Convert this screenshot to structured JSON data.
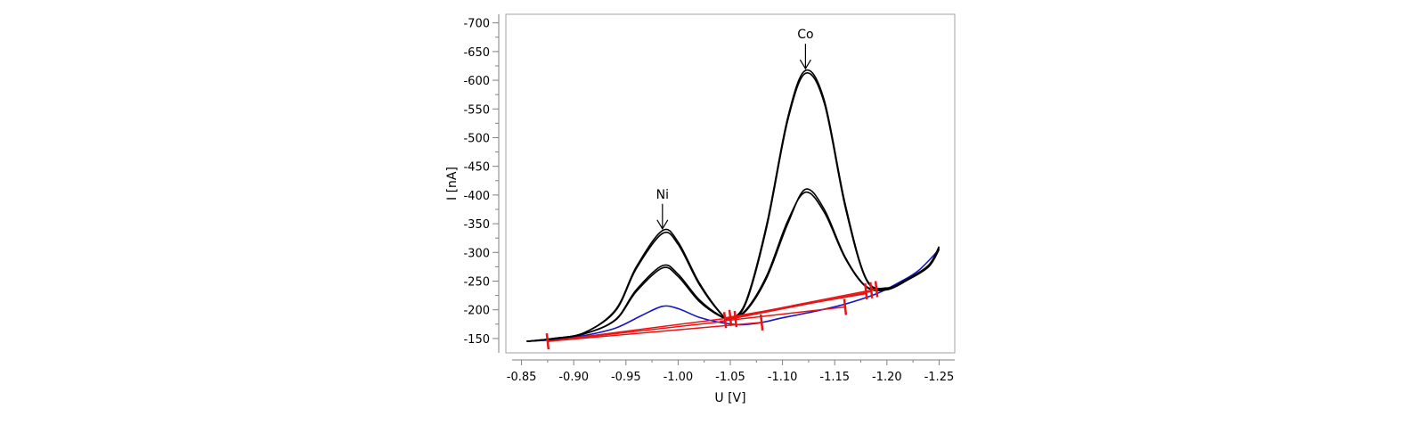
{
  "chart_data": {
    "type": "line",
    "title": "",
    "xlabel": "U [V]",
    "ylabel": "I [nA]",
    "xlim": [
      -0.835,
      -1.265
    ],
    "ylim": [
      -125,
      -715
    ],
    "x_ticks": [
      "-0.85",
      "-0.90",
      "-0.95",
      "-1.00",
      "-1.05",
      "-1.10",
      "-1.15",
      "-1.20",
      "-1.25"
    ],
    "y_ticks": [
      "-700",
      "-650",
      "-600",
      "-550",
      "-500",
      "-450",
      "-400",
      "-350",
      "-300",
      "-250",
      "-200",
      "-150"
    ],
    "grid": false,
    "annotations": [
      {
        "text": "Ni",
        "x": -0.985,
        "y": -338
      },
      {
        "text": "Co",
        "x": -1.122,
        "y": -617
      }
    ],
    "colors": {
      "sample": "#000000",
      "blank": "#1414c8",
      "baseline": "#e81414",
      "frame": "#a0a0a0"
    },
    "series": [
      {
        "color": "#1414c8",
        "values": [
          [
            -0.855,
            -145
          ],
          [
            -0.88,
            -148
          ],
          [
            -0.91,
            -155
          ],
          [
            -0.94,
            -168
          ],
          [
            -0.965,
            -190
          ],
          [
            -0.985,
            -206
          ],
          [
            -1.0,
            -202
          ],
          [
            -1.02,
            -187
          ],
          [
            -1.04,
            -178
          ],
          [
            -1.06,
            -174
          ],
          [
            -1.08,
            -178
          ],
          [
            -1.1,
            -186
          ],
          [
            -1.13,
            -197
          ],
          [
            -1.16,
            -210
          ],
          [
            -1.19,
            -228
          ],
          [
            -1.21,
            -246
          ],
          [
            -1.23,
            -268
          ],
          [
            -1.25,
            -305
          ]
        ]
      },
      {
        "color": "#000000",
        "values": [
          [
            -0.855,
            -145
          ],
          [
            -0.88,
            -149
          ],
          [
            -0.91,
            -158
          ],
          [
            -0.94,
            -183
          ],
          [
            -0.96,
            -235
          ],
          [
            -0.985,
            -277
          ],
          [
            -1.0,
            -262
          ],
          [
            -1.02,
            -218
          ],
          [
            -1.04,
            -190
          ],
          [
            -1.05,
            -186
          ],
          [
            -1.065,
            -200
          ],
          [
            -1.085,
            -260
          ],
          [
            -1.105,
            -355
          ],
          [
            -1.122,
            -405
          ],
          [
            -1.14,
            -370
          ],
          [
            -1.16,
            -290
          ],
          [
            -1.18,
            -240
          ],
          [
            -1.2,
            -235
          ],
          [
            -1.22,
            -252
          ],
          [
            -1.24,
            -275
          ],
          [
            -1.25,
            -305
          ]
        ]
      },
      {
        "color": "#000000",
        "values": [
          [
            -0.855,
            -145
          ],
          [
            -0.88,
            -149
          ],
          [
            -0.91,
            -158
          ],
          [
            -0.94,
            -182
          ],
          [
            -0.96,
            -232
          ],
          [
            -0.985,
            -273
          ],
          [
            -1.0,
            -258
          ],
          [
            -1.02,
            -215
          ],
          [
            -1.04,
            -189
          ],
          [
            -1.05,
            -185
          ],
          [
            -1.065,
            -198
          ],
          [
            -1.085,
            -256
          ],
          [
            -1.105,
            -350
          ],
          [
            -1.122,
            -410
          ],
          [
            -1.14,
            -375
          ],
          [
            -1.16,
            -292
          ],
          [
            -1.18,
            -241
          ],
          [
            -1.2,
            -236
          ],
          [
            -1.22,
            -253
          ],
          [
            -1.24,
            -276
          ],
          [
            -1.25,
            -306
          ]
        ]
      },
      {
        "color": "#000000",
        "values": [
          [
            -0.855,
            -145
          ],
          [
            -0.88,
            -150
          ],
          [
            -0.91,
            -160
          ],
          [
            -0.94,
            -200
          ],
          [
            -0.96,
            -275
          ],
          [
            -0.985,
            -338
          ],
          [
            -1.0,
            -318
          ],
          [
            -1.02,
            -248
          ],
          [
            -1.04,
            -196
          ],
          [
            -1.05,
            -185
          ],
          [
            -1.065,
            -215
          ],
          [
            -1.085,
            -350
          ],
          [
            -1.105,
            -535
          ],
          [
            -1.122,
            -617
          ],
          [
            -1.14,
            -565
          ],
          [
            -1.16,
            -385
          ],
          [
            -1.18,
            -255
          ],
          [
            -1.2,
            -238
          ],
          [
            -1.22,
            -254
          ],
          [
            -1.24,
            -278
          ],
          [
            -1.25,
            -310
          ]
        ]
      },
      {
        "color": "#000000",
        "values": [
          [
            -0.855,
            -145
          ],
          [
            -0.88,
            -150
          ],
          [
            -0.91,
            -160
          ],
          [
            -0.94,
            -198
          ],
          [
            -0.96,
            -272
          ],
          [
            -0.985,
            -333
          ],
          [
            -1.0,
            -314
          ],
          [
            -1.02,
            -245
          ],
          [
            -1.04,
            -195
          ],
          [
            -1.05,
            -184
          ],
          [
            -1.065,
            -212
          ],
          [
            -1.085,
            -345
          ],
          [
            -1.105,
            -530
          ],
          [
            -1.122,
            -612
          ],
          [
            -1.14,
            -560
          ],
          [
            -1.16,
            -380
          ],
          [
            -1.18,
            -253
          ],
          [
            -1.2,
            -237
          ],
          [
            -1.22,
            -253
          ],
          [
            -1.24,
            -277
          ],
          [
            -1.25,
            -308
          ]
        ]
      }
    ],
    "baselines": [
      [
        [
          -0.875,
          -145
        ],
        [
          -1.045,
          -180
        ]
      ],
      [
        [
          -0.875,
          -145
        ],
        [
          -1.05,
          -186
        ]
      ],
      [
        [
          -0.875,
          -145
        ],
        [
          -1.08,
          -178
        ]
      ],
      [
        [
          -1.045,
          -182
        ],
        [
          -1.185,
          -232
        ]
      ],
      [
        [
          -1.05,
          -186
        ],
        [
          -1.19,
          -236
        ]
      ],
      [
        [
          -1.04,
          -180
        ],
        [
          -1.16,
          -205
        ]
      ],
      [
        [
          -1.045,
          -186
        ],
        [
          -1.18,
          -228
        ]
      ]
    ],
    "baseline_markers": [
      [
        -0.875,
        -145
      ],
      [
        -1.045,
        -182
      ],
      [
        -1.05,
        -186
      ],
      [
        -1.055,
        -184
      ],
      [
        -1.08,
        -178
      ],
      [
        -1.16,
        -205
      ],
      [
        -1.18,
        -232
      ],
      [
        -1.185,
        -234
      ],
      [
        -1.19,
        -236
      ]
    ]
  }
}
